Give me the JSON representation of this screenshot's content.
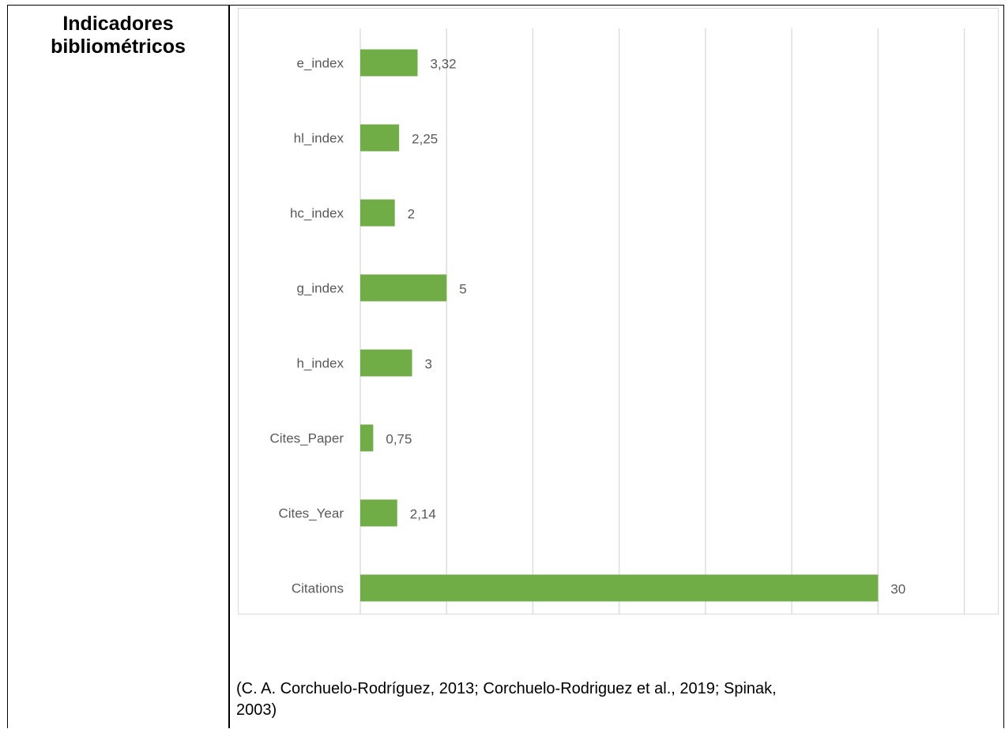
{
  "row_label": {
    "line1": "Indicadores",
    "line2": "bibliométricos"
  },
  "caption": {
    "line1": "(C. A. Corchuelo-Rodríguez, 2013; Corchuelo-Rodriguez et al., 2019; Spinak,",
    "line2": "2003)"
  },
  "colors": {
    "bar": "#70ad47",
    "grid": "#d9d9d9",
    "text": "#595959"
  },
  "chart_data": {
    "type": "bar",
    "orientation": "horizontal",
    "categories": [
      "e_index",
      "hl_index",
      "hc_index",
      "g_index",
      "h_index",
      "Cites_Paper",
      "Cites_Year",
      "Citations"
    ],
    "values": [
      3.32,
      2.25,
      2,
      5,
      3,
      0.75,
      2.14,
      30
    ],
    "data_labels": [
      "3,32",
      "2,25",
      "2",
      "5",
      "3",
      "0,75",
      "2,14",
      "30"
    ],
    "xticks": [
      "0",
      "5",
      "10",
      "15",
      "20",
      "25",
      "30",
      "35"
    ],
    "xlim": [
      0,
      35
    ],
    "grid": true,
    "legend": "none"
  }
}
